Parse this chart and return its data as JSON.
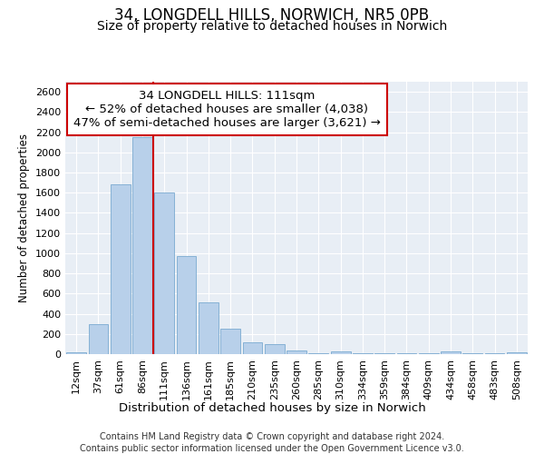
{
  "title1": "34, LONGDELL HILLS, NORWICH, NR5 0PB",
  "title2": "Size of property relative to detached houses in Norwich",
  "xlabel": "Distribution of detached houses by size in Norwich",
  "ylabel": "Number of detached properties",
  "annotation_line1": "34 LONGDELL HILLS: 111sqm",
  "annotation_line2": "← 52% of detached houses are smaller (4,038)",
  "annotation_line3": "47% of semi-detached houses are larger (3,621) →",
  "bar_color": "#b8d0ea",
  "bar_edge_color": "#7aaad0",
  "vline_color": "#cc0000",
  "categories": [
    "12sqm",
    "37sqm",
    "61sqm",
    "86sqm",
    "111sqm",
    "136sqm",
    "161sqm",
    "185sqm",
    "210sqm",
    "235sqm",
    "260sqm",
    "285sqm",
    "310sqm",
    "334sqm",
    "359sqm",
    "384sqm",
    "409sqm",
    "434sqm",
    "458sqm",
    "483sqm",
    "508sqm"
  ],
  "values": [
    20,
    300,
    1680,
    2150,
    1600,
    970,
    510,
    250,
    120,
    100,
    40,
    5,
    30,
    5,
    5,
    5,
    5,
    30,
    5,
    5,
    20
  ],
  "vline_position": 3.5,
  "ylim": [
    0,
    2700
  ],
  "yticks": [
    0,
    200,
    400,
    600,
    800,
    1000,
    1200,
    1400,
    1600,
    1800,
    2000,
    2200,
    2400,
    2600
  ],
  "background_color": "#e8eef5",
  "grid_color": "#ffffff",
  "footer1": "Contains HM Land Registry data © Crown copyright and database right 2024.",
  "footer2": "Contains public sector information licensed under the Open Government Licence v3.0.",
  "title1_fontsize": 12,
  "title2_fontsize": 10,
  "annotation_fontsize": 9.5,
  "tick_fontsize": 8,
  "ylabel_fontsize": 8.5,
  "xlabel_fontsize": 9.5,
  "footer_fontsize": 7
}
